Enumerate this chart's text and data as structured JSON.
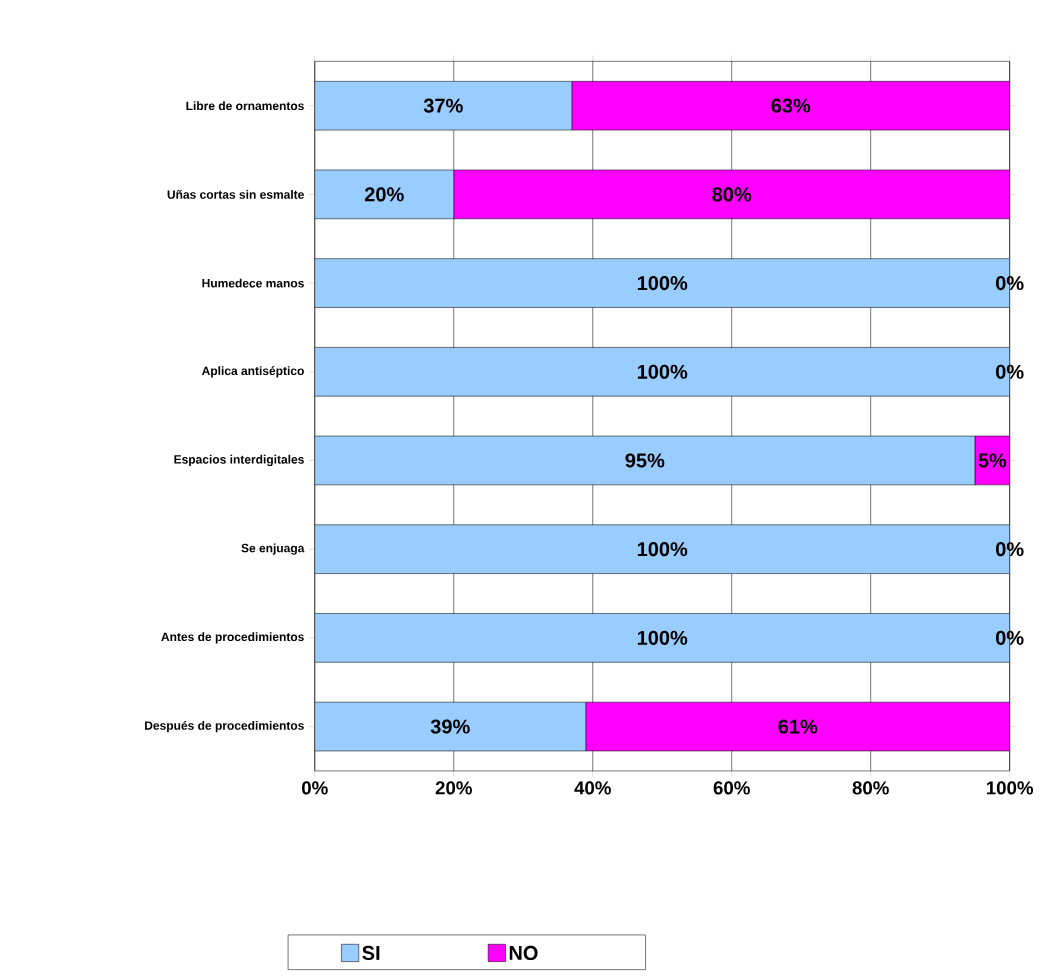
{
  "chart_data": {
    "type": "bar",
    "orientation": "horizontal",
    "stacked": true,
    "categories": [
      "Libre de ornamentos",
      "Uñas cortas sin esmalte",
      "Humedece manos",
      "Aplica antiséptico",
      "Espacios interdigitales",
      "Se enjuaga",
      "Antes de procedimientos",
      "Después de procedimientos"
    ],
    "series": [
      {
        "name": "SI",
        "color": "#99ccff",
        "values": [
          37,
          20,
          100,
          100,
          95,
          100,
          100,
          39
        ],
        "value_labels": [
          "37%",
          "20%",
          "100%",
          "100%",
          "95%",
          "100%",
          "100%",
          "39%"
        ]
      },
      {
        "name": "NO",
        "color": "#ff00ff",
        "values": [
          63,
          80,
          0,
          0,
          5,
          0,
          0,
          61
        ],
        "value_labels": [
          "63%",
          "80%",
          "0%",
          "0%",
          "5%",
          "0%",
          "0%",
          "61%"
        ]
      }
    ],
    "xlim": [
      0,
      100
    ],
    "xticks": [
      {
        "value": 0,
        "label": "0%"
      },
      {
        "value": 20,
        "label": "20%"
      },
      {
        "value": 40,
        "label": "40%"
      },
      {
        "value": 60,
        "label": "60%"
      },
      {
        "value": 80,
        "label": "80%"
      },
      {
        "value": 100,
        "label": "100%"
      }
    ],
    "grid": "x",
    "legend": "bottom"
  }
}
